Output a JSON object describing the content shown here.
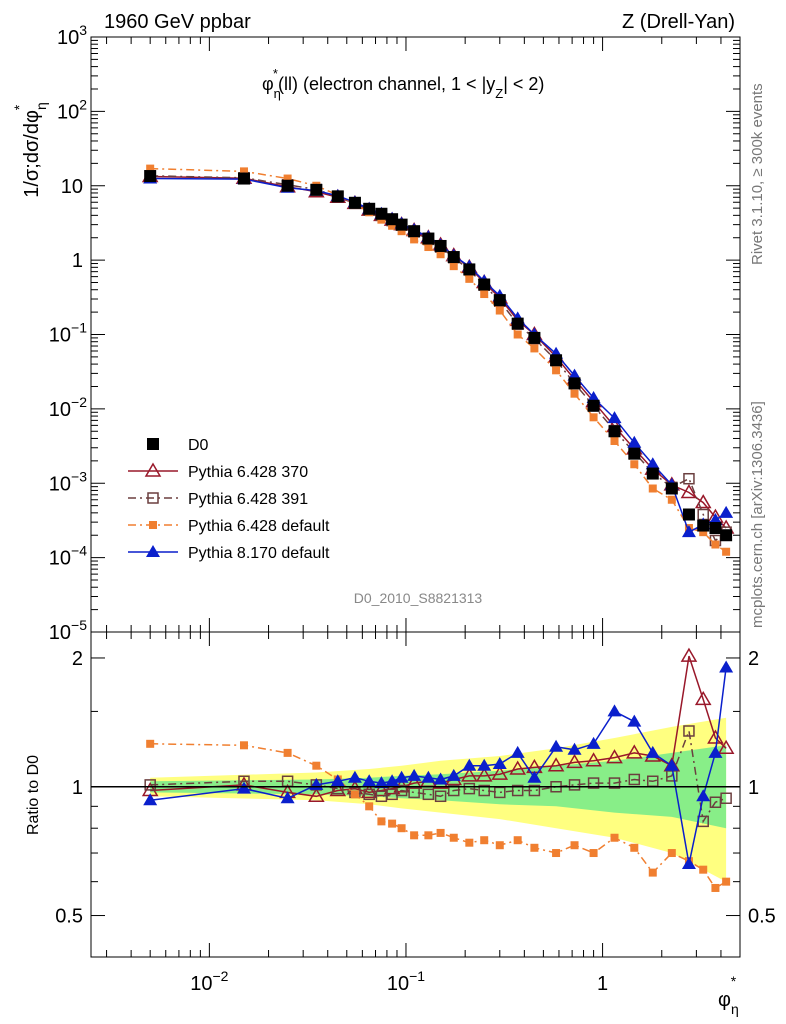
{
  "header": {
    "left": "1960 GeV ppbar",
    "right": "Z (Drell-Yan)"
  },
  "plot": {
    "title": "φ*η(ll) (electron channel, 1 < |yZ| < 2)",
    "title_main": "φ",
    "title_sub": "η",
    "title_sup": "*",
    "title_rest": "(ll) (electron channel, 1 < |y",
    "title_sub2": "Z",
    "title_end": "| < 2)",
    "ylabel_main": "1/σ;dσ/dφ",
    "ylabel_sub": "η",
    "ylabel_sup": "*",
    "ratio_ylabel": "Ratio to D0",
    "xlabel_main": "φ",
    "xlabel_sub": "η",
    "xlabel_sup": "*",
    "analysis_id": "D0_2010_S8821313",
    "side_note_top": "Rivet 3.1.10, ≥ 300k events",
    "side_note_bottom": "mcplots.cern.ch [arXiv:1306.3436]"
  },
  "chart_data": {
    "type": "line",
    "x_scale": "log",
    "xlim": [
      0.0025,
      5
    ],
    "x_ticks": [
      "10^-2",
      "10^-1",
      "1"
    ],
    "main_panel": {
      "y_scale": "log",
      "ylim": [
        1e-05,
        1000
      ],
      "y_ticks": [
        "10^-5",
        "10^-4",
        "10^-3",
        "10^-2",
        "10^-1",
        "1",
        "10",
        "10^2",
        "10^3"
      ]
    },
    "ratio_panel": {
      "y_scale": "log",
      "ylim": [
        0.4,
        2.3
      ],
      "y_ticks": [
        "0.5",
        "1",
        "2"
      ],
      "band_inner": [
        0.97,
        1.03,
        0.96,
        1.04,
        0.95,
        1.05,
        0.94,
        1.06,
        0.93,
        1.07,
        0.91,
        1.09,
        0.9,
        1.12,
        0.87,
        1.15,
        0.85,
        1.2,
        0.8,
        1.25
      ],
      "band_outer": [
        0.95,
        1.05,
        0.93,
        1.08,
        0.91,
        1.1,
        0.89,
        1.12,
        0.87,
        1.15,
        0.84,
        1.18,
        0.8,
        1.23,
        0.76,
        1.3,
        0.7,
        1.38,
        0.6,
        1.45
      ]
    },
    "x": [
      0.005,
      0.015,
      0.025,
      0.035,
      0.045,
      0.055,
      0.065,
      0.075,
      0.085,
      0.095,
      0.11,
      0.13,
      0.15,
      0.175,
      0.21,
      0.25,
      0.3,
      0.37,
      0.45,
      0.58,
      0.72,
      0.9,
      1.15,
      1.45,
      1.8,
      2.25,
      2.75,
      3.25,
      3.75,
      4.25
    ],
    "series": [
      {
        "name": "D0",
        "color": "#000000",
        "marker": "square-filled",
        "line": "none",
        "values": [
          13.5,
          12.5,
          10.0,
          8.8,
          7.2,
          5.9,
          4.9,
          4.2,
          3.55,
          3.0,
          2.45,
          1.95,
          1.55,
          1.1,
          0.75,
          0.47,
          0.29,
          0.14,
          0.09,
          0.045,
          0.022,
          0.011,
          0.005,
          0.0025,
          0.00135,
          0.00085,
          0.00038,
          0.00027,
          0.00025,
          0.0002
        ],
        "ratio": [
          1.0,
          1.0,
          1.0,
          1.0,
          1.0,
          1.0,
          1.0,
          1.0,
          1.0,
          1.0,
          1.0,
          1.0,
          1.0,
          1.0,
          1.0,
          1.0,
          1.0,
          1.0,
          1.0,
          1.0,
          1.0,
          1.0,
          1.0,
          1.0,
          1.0,
          1.0,
          1.0,
          1.0,
          1.0,
          1.0
        ]
      },
      {
        "name": "Pythia 6.428 370",
        "color": "#99182a",
        "marker": "triangle-open",
        "line": "solid",
        "values": [
          13.3,
          12.6,
          9.7,
          8.3,
          7.0,
          5.8,
          4.7,
          4.0,
          3.45,
          3.0,
          2.5,
          2.0,
          1.6,
          1.15,
          0.8,
          0.5,
          0.31,
          0.155,
          0.1,
          0.05,
          0.025,
          0.0125,
          0.0058,
          0.0029,
          0.00155,
          0.00095,
          0.00075,
          0.00055,
          0.00035,
          0.00025
        ],
        "ratio": [
          0.98,
          1.01,
          0.97,
          0.95,
          0.98,
          0.99,
          0.97,
          0.98,
          0.99,
          1.0,
          1.02,
          1.03,
          1.02,
          1.04,
          1.06,
          1.06,
          1.07,
          1.1,
          1.11,
          1.12,
          1.14,
          1.15,
          1.17,
          1.2,
          1.18,
          1.12,
          2.02,
          1.6,
          1.3,
          1.23
        ]
      },
      {
        "name": "Pythia 6.428 391",
        "color": "#6b3f3f",
        "marker": "square-open",
        "line": "dashdot",
        "values": [
          13.6,
          12.8,
          10.3,
          8.9,
          7.1,
          5.8,
          4.7,
          4.0,
          3.4,
          2.95,
          2.4,
          1.9,
          1.5,
          1.08,
          0.74,
          0.46,
          0.28,
          0.138,
          0.088,
          0.045,
          0.022,
          0.011,
          0.0051,
          0.0026,
          0.00138,
          0.00088,
          0.00115,
          0.00038,
          0.00017,
          0.00022
        ],
        "ratio": [
          1.01,
          1.03,
          1.03,
          1.01,
          0.99,
          0.97,
          0.96,
          0.95,
          0.96,
          0.98,
          0.97,
          0.96,
          0.95,
          0.98,
          0.99,
          0.98,
          0.97,
          0.98,
          0.98,
          1.0,
          1.01,
          1.02,
          1.02,
          1.04,
          1.03,
          1.06,
          1.35,
          0.83,
          0.92,
          0.94
        ]
      },
      {
        "name": "Pythia 6.428 default",
        "color": "#f07f30",
        "marker": "square-filled-small",
        "line": "dashdot",
        "values": [
          17.0,
          15.6,
          12.5,
          10.0,
          7.5,
          5.7,
          4.4,
          3.5,
          2.9,
          2.45,
          1.9,
          1.5,
          1.2,
          0.83,
          0.56,
          0.35,
          0.21,
          0.1,
          0.065,
          0.033,
          0.016,
          0.0077,
          0.0037,
          0.0018,
          0.00085,
          0.0006,
          0.00025,
          0.00022,
          0.00015,
          0.00012
        ],
        "ratio": [
          1.26,
          1.25,
          1.2,
          1.12,
          1.04,
          0.96,
          0.9,
          0.83,
          0.82,
          0.8,
          0.77,
          0.77,
          0.78,
          0.76,
          0.74,
          0.75,
          0.73,
          0.75,
          0.72,
          0.7,
          0.73,
          0.7,
          0.76,
          0.72,
          0.63,
          0.7,
          0.67,
          0.64,
          0.58,
          0.6
        ]
      },
      {
        "name": "Pythia 8.170 default",
        "color": "#0a1fcc",
        "marker": "triangle-filled",
        "line": "solid",
        "values": [
          12.5,
          12.3,
          9.4,
          8.6,
          7.3,
          6.0,
          4.9,
          4.2,
          3.6,
          3.1,
          2.55,
          2.05,
          1.6,
          1.15,
          0.82,
          0.52,
          0.33,
          0.165,
          0.1,
          0.055,
          0.028,
          0.014,
          0.0075,
          0.0035,
          0.0018,
          0.00095,
          0.00022,
          0.00028,
          0.00032,
          0.0004
        ],
        "ratio": [
          0.93,
          0.99,
          0.94,
          1.01,
          1.03,
          1.05,
          1.03,
          1.02,
          1.03,
          1.05,
          1.06,
          1.05,
          1.04,
          1.06,
          1.12,
          1.12,
          1.13,
          1.2,
          1.05,
          1.24,
          1.22,
          1.26,
          1.5,
          1.42,
          1.2,
          1.12,
          0.66,
          0.95,
          1.2,
          1.9
        ]
      }
    ]
  }
}
